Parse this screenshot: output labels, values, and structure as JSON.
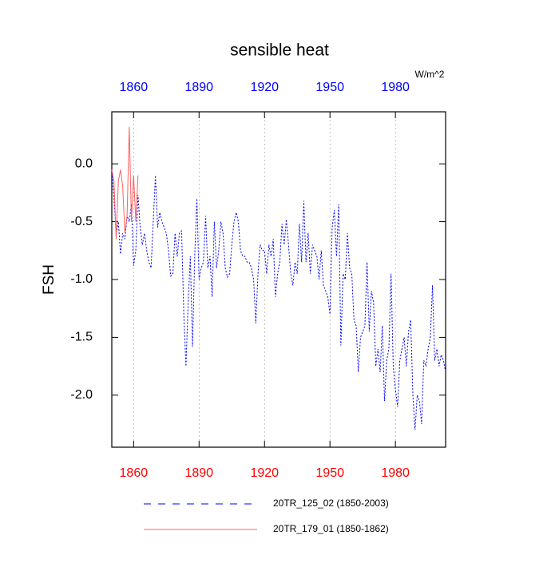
{
  "chart_data": {
    "type": "line",
    "title": "sensible heat",
    "ylabel": "FSH",
    "units": "W/m^2",
    "xlim": [
      1850,
      2003
    ],
    "xticks": [
      1860,
      1890,
      1920,
      1950,
      1980
    ],
    "ylim": [
      -2.45,
      0.45
    ],
    "yticks": [
      {
        "value": 0,
        "label": "0.0"
      },
      -0.5,
      {
        "value": -1,
        "label": "-1.0"
      },
      -1.5,
      {
        "value": -2,
        "label": "-2.0"
      }
    ],
    "grid": true,
    "series": [
      {
        "name": "20TR_125_02 (1850-2003)",
        "color": "#0000ff",
        "dashed": true,
        "x": [
          1850,
          1851,
          1852,
          1853,
          1854,
          1855,
          1856,
          1857,
          1858,
          1859,
          1860,
          1861,
          1862,
          1863,
          1864,
          1865,
          1866,
          1867,
          1868,
          1869,
          1870,
          1871,
          1872,
          1873,
          1874,
          1875,
          1876,
          1877,
          1878,
          1879,
          1880,
          1881,
          1882,
          1883,
          1884,
          1885,
          1886,
          1887,
          1888,
          1889,
          1890,
          1891,
          1892,
          1893,
          1894,
          1895,
          1896,
          1897,
          1898,
          1899,
          1900,
          1901,
          1902,
          1903,
          1904,
          1905,
          1906,
          1907,
          1908,
          1909,
          1910,
          1911,
          1912,
          1913,
          1914,
          1915,
          1916,
          1917,
          1918,
          1919,
          1920,
          1921,
          1922,
          1923,
          1924,
          1925,
          1926,
          1927,
          1928,
          1929,
          1930,
          1931,
          1932,
          1933,
          1934,
          1935,
          1936,
          1937,
          1938,
          1939,
          1940,
          1941,
          1942,
          1943,
          1944,
          1945,
          1946,
          1947,
          1948,
          1949,
          1950,
          1951,
          1952,
          1953,
          1954,
          1955,
          1956,
          1957,
          1958,
          1959,
          1960,
          1961,
          1962,
          1963,
          1964,
          1965,
          1966,
          1967,
          1968,
          1969,
          1970,
          1971,
          1972,
          1973,
          1974,
          1975,
          1976,
          1977,
          1978,
          1979,
          1980,
          1981,
          1982,
          1983,
          1984,
          1985,
          1986,
          1987,
          1988,
          1989,
          1990,
          1991,
          1992,
          1993,
          1994,
          1995,
          1996,
          1997,
          1998,
          1999,
          2000,
          2001,
          2002,
          2003
        ],
        "values": [
          -0.05,
          -0.3,
          -0.6,
          -0.5,
          -0.78,
          -0.6,
          -0.65,
          -0.45,
          -0.5,
          -0.35,
          -0.88,
          -0.75,
          -0.27,
          -0.55,
          -0.7,
          -0.6,
          -0.75,
          -0.85,
          -0.9,
          -0.5,
          -0.1,
          -0.55,
          -0.42,
          -0.5,
          -0.55,
          -0.6,
          -0.75,
          -0.97,
          -0.95,
          -0.6,
          -0.8,
          -0.6,
          -0.58,
          -1.3,
          -1.75,
          -1.2,
          -0.8,
          -1.58,
          -0.8,
          -0.3,
          -1.0,
          -0.9,
          -0.85,
          -0.45,
          -0.9,
          -0.8,
          -1.15,
          -0.5,
          -0.9,
          -0.75,
          -0.5,
          -0.6,
          -0.9,
          -0.98,
          -0.95,
          -0.7,
          -0.5,
          -0.42,
          -0.5,
          -0.75,
          -0.8,
          -0.8,
          -0.85,
          -0.85,
          -0.9,
          -1.0,
          -1.38,
          -0.95,
          -0.7,
          -0.75,
          -0.75,
          -0.95,
          -0.7,
          -0.8,
          -0.65,
          -1.15,
          -0.95,
          -0.85,
          -0.52,
          -0.7,
          -0.48,
          -0.7,
          -0.95,
          -1.05,
          -0.85,
          -0.95,
          -0.52,
          -0.85,
          -0.32,
          -0.85,
          -0.6,
          -0.95,
          -0.7,
          -0.75,
          -0.8,
          -1.0,
          -0.75,
          -1.05,
          -1.1,
          -1.15,
          -1.3,
          -0.55,
          -0.4,
          -0.8,
          -0.35,
          -1.57,
          -0.95,
          -1.0,
          -0.6,
          -0.9,
          -0.95,
          -1.35,
          -1.4,
          -1.8,
          -1.5,
          -1.45,
          -1.4,
          -0.85,
          -1.45,
          -1.1,
          -1.2,
          -1.75,
          -1.6,
          -1.8,
          -1.4,
          -2.05,
          -1.7,
          -1.6,
          -0.95,
          -1.75,
          -1.95,
          -2.1,
          -1.7,
          -1.6,
          -1.5,
          -1.75,
          -1.45,
          -1.35,
          -2.0,
          -2.3,
          -2.0,
          -2.05,
          -2.25,
          -1.7,
          -1.75,
          -1.6,
          -1.5,
          -1.05,
          -1.7,
          -1.6,
          -1.75,
          -1.65,
          -1.7,
          -1.8
        ]
      },
      {
        "name": "20TR_179_01 (1850-1862)",
        "color": "#ff6060",
        "dashed": false,
        "x": [
          1850,
          1851,
          1852,
          1853,
          1854,
          1855,
          1856,
          1857,
          1858,
          1859,
          1860,
          1861,
          1862
        ],
        "values": [
          -0.05,
          -0.15,
          -0.65,
          -0.15,
          -0.05,
          -0.2,
          -0.6,
          -0.45,
          0.32,
          -0.5,
          -0.1,
          -0.5,
          -0.1
        ]
      }
    ]
  }
}
